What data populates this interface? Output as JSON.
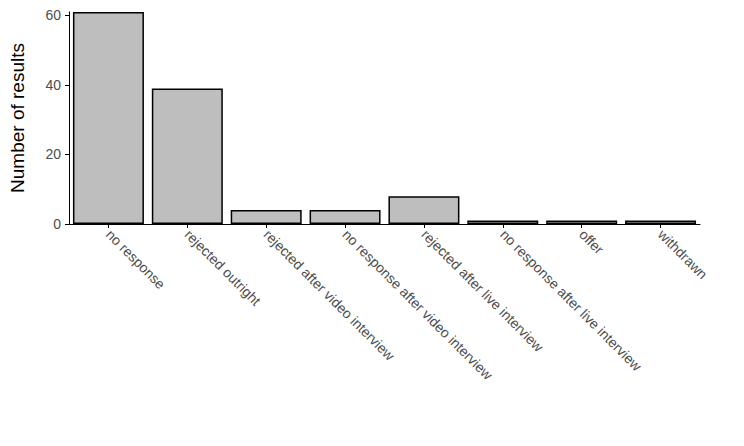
{
  "chart_data": {
    "type": "bar",
    "y_label": "Number of results",
    "categories": [
      "no response",
      "rejected outright",
      "rejected after video interview",
      "no response after video interview",
      "rejected after live interview",
      "no response after live interview",
      "offer",
      "withdrawn"
    ],
    "values": [
      61,
      39,
      4,
      4,
      8,
      1,
      1,
      1
    ],
    "color": "#bebebe",
    "ylim": [
      0,
      61
    ],
    "yticks": [
      0,
      20,
      40,
      60
    ],
    "grid": false
  }
}
